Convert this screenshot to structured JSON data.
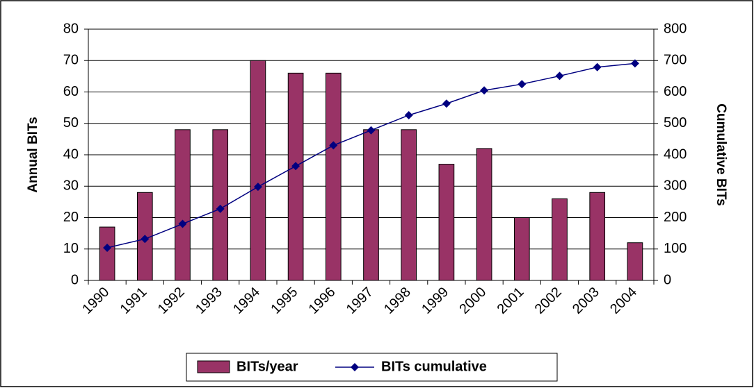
{
  "chart_data": {
    "type": "bar_line",
    "categories": [
      "1990",
      "1991",
      "1992",
      "1993",
      "1994",
      "1995",
      "1996",
      "1997",
      "1998",
      "1999",
      "2000",
      "2001",
      "2002",
      "2003",
      "2004"
    ],
    "series": [
      {
        "name": "BITs/year",
        "color": "#993366",
        "values": [
          17,
          28,
          48,
          48,
          70,
          66,
          66,
          48,
          48,
          37,
          42,
          20,
          26,
          28,
          12
        ]
      },
      {
        "name": "BITs cumulative",
        "color": "#000080",
        "axis": "y2",
        "values": [
          104,
          132,
          180,
          228,
          298,
          364,
          430,
          478,
          526,
          563,
          605,
          625,
          651,
          679,
          691
        ]
      }
    ],
    "ylabel": "Annual BITs",
    "y2label": "Cumulative BITs",
    "ylim": [
      0,
      80
    ],
    "yticks": [
      0,
      10,
      20,
      30,
      40,
      50,
      60,
      70,
      80
    ],
    "y2lim": [
      0,
      800
    ],
    "y2ticks": [
      0,
      100,
      200,
      300,
      400,
      500,
      600,
      700,
      800
    ],
    "grid": true,
    "legend": "bottom"
  }
}
